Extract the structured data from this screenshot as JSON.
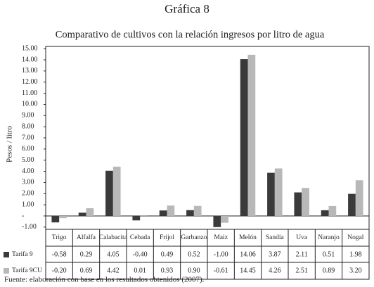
{
  "chart_data": {
    "type": "bar",
    "title": "Gráfica 8",
    "subtitle": "Comparativo de cultivos con la relación ingresos por litro de agua",
    "y_label": "Pesos / litro",
    "categories": [
      "Trigo",
      "Alfalfa",
      "Calabacita",
      "Cebada",
      "Frijol",
      "Garbanzo",
      "Maiz",
      "Melón",
      "Sandía",
      "Uva",
      "Naranjo",
      "Nogal"
    ],
    "series": [
      {
        "name": "Tarifa 9",
        "color": "#3a3a3a",
        "values": [
          -0.58,
          0.29,
          4.05,
          -0.4,
          0.49,
          0.52,
          -1.0,
          14.06,
          3.87,
          2.11,
          0.51,
          1.98
        ],
        "value_labels": [
          "-0.58",
          "0.29",
          "4.05",
          "-0.40",
          "0.49",
          "0.52",
          "-1.00",
          "14.06",
          "3.87",
          "2.11",
          "0.51",
          "1.98"
        ]
      },
      {
        "name": "Tarifa 9CU",
        "color": "#b8b8b8",
        "values": [
          -0.2,
          0.69,
          4.42,
          0.01,
          0.93,
          0.9,
          -0.61,
          14.45,
          4.26,
          2.51,
          0.89,
          3.2
        ],
        "value_labels": [
          "-0.20",
          "0.69",
          "4.42",
          "0.01",
          "0.93",
          "0.90",
          "-0.61",
          "14.45",
          "4.26",
          "2.51",
          "0.89",
          "3.20"
        ]
      }
    ],
    "ylim": [
      -1.2,
      15.2
    ],
    "yticks": [
      {
        "value": 15,
        "label": "15.00"
      },
      {
        "value": 14,
        "label": "14.00"
      },
      {
        "value": 13,
        "label": "13.00"
      },
      {
        "value": 12,
        "label": "12.00"
      },
      {
        "value": 11,
        "label": "11.00"
      },
      {
        "value": 10,
        "label": "10.00"
      },
      {
        "value": 9,
        "label": "9.00"
      },
      {
        "value": 8,
        "label": "8.00"
      },
      {
        "value": 7,
        "label": "7.00"
      },
      {
        "value": 6,
        "label": "6.00"
      },
      {
        "value": 5,
        "label": "5.00"
      },
      {
        "value": 4,
        "label": "4.00"
      },
      {
        "value": 3,
        "label": "3.00"
      },
      {
        "value": 2,
        "label": "2.00"
      },
      {
        "value": 1,
        "label": "1.00"
      },
      {
        "value": 0,
        "label": "-"
      },
      {
        "value": -1,
        "label": "-1.00"
      }
    ],
    "note": "Fuente: elaboración con base en los resultados obtenidos (2007)."
  }
}
